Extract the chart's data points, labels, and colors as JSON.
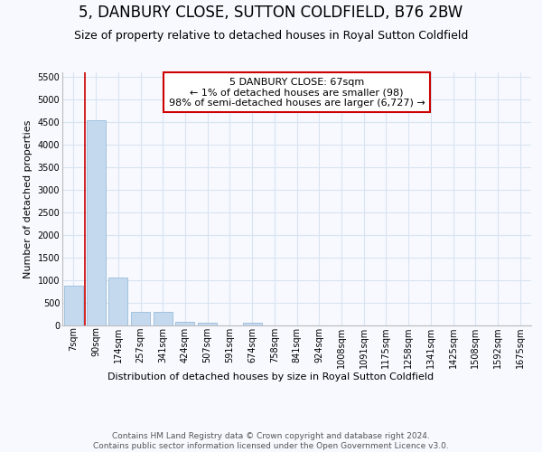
{
  "title": "5, DANBURY CLOSE, SUTTON COLDFIELD, B76 2BW",
  "subtitle": "Size of property relative to detached houses in Royal Sutton Coldfield",
  "xlabel": "Distribution of detached houses by size in Royal Sutton Coldfield",
  "ylabel": "Number of detached properties",
  "bar_color": "#c5d9ee",
  "bar_edge_color": "#8ab4d4",
  "annotation_line_color": "#cc0000",
  "annotation_box_edge": "#cc0000",
  "annotation_line1": "5 DANBURY CLOSE: 67sqm",
  "annotation_line2": "← 1% of detached houses are smaller (98)",
  "annotation_line3": "98% of semi-detached houses are larger (6,727) →",
  "categories": [
    "7sqm",
    "90sqm",
    "174sqm",
    "257sqm",
    "341sqm",
    "424sqm",
    "507sqm",
    "591sqm",
    "674sqm",
    "758sqm",
    "841sqm",
    "924sqm",
    "1008sqm",
    "1091sqm",
    "1175sqm",
    "1258sqm",
    "1341sqm",
    "1425sqm",
    "1508sqm",
    "1592sqm",
    "1675sqm"
  ],
  "values": [
    880,
    4540,
    1060,
    295,
    295,
    75,
    65,
    0,
    65,
    0,
    0,
    0,
    0,
    0,
    0,
    0,
    0,
    0,
    0,
    0,
    0
  ],
  "ylim_max": 5600,
  "yticks": [
    0,
    500,
    1000,
    1500,
    2000,
    2500,
    3000,
    3500,
    4000,
    4500,
    5000,
    5500
  ],
  "bg_color": "#f7f9ff",
  "grid_color": "#d8e4f0",
  "footer_line1": "Contains HM Land Registry data © Crown copyright and database right 2024.",
  "footer_line2": "Contains public sector information licensed under the Open Government Licence v3.0.",
  "title_fontsize": 12,
  "subtitle_fontsize": 9,
  "axis_label_fontsize": 8,
  "tick_fontsize": 7,
  "annotation_fontsize": 8,
  "footer_fontsize": 6.5,
  "red_line_x": 0.72
}
